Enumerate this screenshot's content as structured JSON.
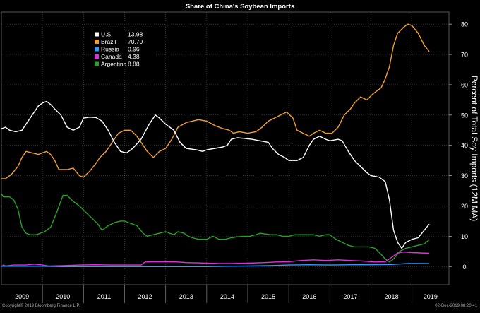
{
  "chart_data": {
    "type": "line",
    "title": "Share of China's Soybean Imports",
    "ylabel": "Percent of Total Soy Imports (12M MA)",
    "xlabel": "",
    "ylim": [
      -6,
      84
    ],
    "xlim": [
      2009.0,
      2019.9
    ],
    "y_ticks": [
      0,
      10,
      20,
      30,
      40,
      50,
      60,
      70,
      80
    ],
    "x_ticks": [
      "2009",
      "2010",
      "2011",
      "2012",
      "2013",
      "2014",
      "2015",
      "2016",
      "2017",
      "2018",
      "2019"
    ],
    "grid": true,
    "legend_position": "top-left",
    "footer_left": "Copyright© 2019 Bloomberg Finance L.P.",
    "footer_right": "02-Dec-2019 08:20:41",
    "series": [
      {
        "name": "U.S.",
        "last_value": "13.98",
        "color": "#ffffff",
        "points": [
          [
            2009.0,
            45.5
          ],
          [
            2009.1,
            46
          ],
          [
            2009.2,
            45
          ],
          [
            2009.35,
            44.5
          ],
          [
            2009.5,
            45
          ],
          [
            2009.6,
            47
          ],
          [
            2009.75,
            50
          ],
          [
            2009.9,
            53
          ],
          [
            2010.0,
            54
          ],
          [
            2010.1,
            54.5
          ],
          [
            2010.2,
            53.5
          ],
          [
            2010.3,
            52
          ],
          [
            2010.45,
            50
          ],
          [
            2010.6,
            46
          ],
          [
            2010.75,
            45
          ],
          [
            2010.9,
            46
          ],
          [
            2011.0,
            49
          ],
          [
            2011.15,
            49.3
          ],
          [
            2011.3,
            49.2
          ],
          [
            2011.45,
            48
          ],
          [
            2011.6,
            45
          ],
          [
            2011.75,
            41
          ],
          [
            2011.9,
            38
          ],
          [
            2012.05,
            37.5
          ],
          [
            2012.2,
            39
          ],
          [
            2012.4,
            42
          ],
          [
            2012.6,
            47
          ],
          [
            2012.75,
            50
          ],
          [
            2012.85,
            49
          ],
          [
            2013.0,
            47
          ],
          [
            2013.2,
            45
          ],
          [
            2013.35,
            41
          ],
          [
            2013.5,
            39
          ],
          [
            2013.75,
            38.5
          ],
          [
            2013.9,
            38
          ],
          [
            2014.0,
            38.5
          ],
          [
            2014.2,
            39
          ],
          [
            2014.4,
            39.5
          ],
          [
            2014.5,
            40
          ],
          [
            2014.6,
            42
          ],
          [
            2014.75,
            42.5
          ],
          [
            2014.9,
            42.3
          ],
          [
            2015.1,
            42
          ],
          [
            2015.3,
            41.5
          ],
          [
            2015.5,
            41
          ],
          [
            2015.6,
            39
          ],
          [
            2015.75,
            37
          ],
          [
            2015.9,
            36
          ],
          [
            2016.0,
            35
          ],
          [
            2016.2,
            35
          ],
          [
            2016.35,
            36
          ],
          [
            2016.5,
            40
          ],
          [
            2016.6,
            42
          ],
          [
            2016.75,
            43
          ],
          [
            2016.9,
            42
          ],
          [
            2017.0,
            41.5
          ],
          [
            2017.2,
            42
          ],
          [
            2017.3,
            41.5
          ],
          [
            2017.45,
            38
          ],
          [
            2017.6,
            35
          ],
          [
            2017.75,
            33
          ],
          [
            2017.9,
            31
          ],
          [
            2018.0,
            30
          ],
          [
            2018.2,
            29.5
          ],
          [
            2018.35,
            28
          ],
          [
            2018.45,
            22
          ],
          [
            2018.55,
            12
          ],
          [
            2018.65,
            8
          ],
          [
            2018.75,
            6
          ],
          [
            2018.85,
            8
          ],
          [
            2019.0,
            9
          ],
          [
            2019.15,
            9.5
          ],
          [
            2019.3,
            12
          ],
          [
            2019.42,
            14
          ]
        ]
      },
      {
        "name": "Brazil",
        "last_value": "70.79",
        "color": "#f0a030",
        "points": [
          [
            2009.0,
            29
          ],
          [
            2009.1,
            29
          ],
          [
            2009.25,
            30.5
          ],
          [
            2009.4,
            33
          ],
          [
            2009.5,
            36
          ],
          [
            2009.6,
            38
          ],
          [
            2009.75,
            37.5
          ],
          [
            2009.9,
            37
          ],
          [
            2010.0,
            37.5
          ],
          [
            2010.1,
            38
          ],
          [
            2010.2,
            37
          ],
          [
            2010.3,
            35
          ],
          [
            2010.4,
            32
          ],
          [
            2010.6,
            32
          ],
          [
            2010.75,
            32.5
          ],
          [
            2010.9,
            30
          ],
          [
            2011.0,
            29.5
          ],
          [
            2011.15,
            31.5
          ],
          [
            2011.3,
            34
          ],
          [
            2011.4,
            36
          ],
          [
            2011.55,
            38
          ],
          [
            2011.7,
            41
          ],
          [
            2011.85,
            44
          ],
          [
            2012.0,
            45
          ],
          [
            2012.15,
            45
          ],
          [
            2012.3,
            43
          ],
          [
            2012.4,
            41
          ],
          [
            2012.55,
            38
          ],
          [
            2012.7,
            36
          ],
          [
            2012.85,
            38
          ],
          [
            2013.0,
            39
          ],
          [
            2013.15,
            42
          ],
          [
            2013.3,
            46
          ],
          [
            2013.5,
            47.5
          ],
          [
            2013.65,
            48
          ],
          [
            2013.8,
            48.5
          ],
          [
            2014.0,
            48
          ],
          [
            2014.2,
            46.5
          ],
          [
            2014.4,
            45.5
          ],
          [
            2014.55,
            45
          ],
          [
            2014.65,
            44
          ],
          [
            2014.8,
            44.5
          ],
          [
            2015.0,
            44
          ],
          [
            2015.2,
            44.5
          ],
          [
            2015.35,
            46
          ],
          [
            2015.5,
            48
          ],
          [
            2015.65,
            49
          ],
          [
            2015.8,
            50
          ],
          [
            2015.95,
            51
          ],
          [
            2016.1,
            49
          ],
          [
            2016.2,
            45
          ],
          [
            2016.35,
            44
          ],
          [
            2016.5,
            43
          ],
          [
            2016.6,
            44
          ],
          [
            2016.75,
            45
          ],
          [
            2016.9,
            44
          ],
          [
            2017.05,
            44
          ],
          [
            2017.2,
            46
          ],
          [
            2017.35,
            50
          ],
          [
            2017.5,
            52
          ],
          [
            2017.6,
            54
          ],
          [
            2017.75,
            56
          ],
          [
            2017.9,
            55
          ],
          [
            2018.05,
            57
          ],
          [
            2018.25,
            59
          ],
          [
            2018.35,
            62
          ],
          [
            2018.45,
            66
          ],
          [
            2018.55,
            73
          ],
          [
            2018.65,
            77
          ],
          [
            2018.8,
            79
          ],
          [
            2018.9,
            80
          ],
          [
            2019.0,
            79.5
          ],
          [
            2019.15,
            77
          ],
          [
            2019.3,
            73
          ],
          [
            2019.42,
            71
          ]
        ]
      },
      {
        "name": "Russia",
        "last_value": "0.96",
        "color": "#3399ff",
        "points": [
          [
            2009.0,
            0.1
          ],
          [
            2009.5,
            0.1
          ],
          [
            2010.0,
            0.1
          ],
          [
            2010.5,
            0
          ],
          [
            2011.0,
            0
          ],
          [
            2011.5,
            0
          ],
          [
            2012.0,
            0
          ],
          [
            2012.5,
            0
          ],
          [
            2013.0,
            0
          ],
          [
            2013.5,
            0
          ],
          [
            2014.0,
            0
          ],
          [
            2014.5,
            0.1
          ],
          [
            2015.0,
            0.2
          ],
          [
            2015.5,
            0.3
          ],
          [
            2016.0,
            0.5
          ],
          [
            2016.5,
            0.6
          ],
          [
            2017.0,
            0.5
          ],
          [
            2017.5,
            0.6
          ],
          [
            2018.0,
            0.6
          ],
          [
            2018.5,
            0.7
          ],
          [
            2018.9,
            1.0
          ],
          [
            2019.2,
            1.0
          ],
          [
            2019.42,
            0.96
          ]
        ]
      },
      {
        "name": "Canada",
        "last_value": "4.38",
        "color": "#e030e0",
        "points": [
          [
            2009.0,
            0
          ],
          [
            2009.05,
            0.5
          ],
          [
            2009.1,
            0.2
          ],
          [
            2009.3,
            0.5
          ],
          [
            2009.6,
            0.5
          ],
          [
            2009.8,
            0.8
          ],
          [
            2010.0,
            0.5
          ],
          [
            2010.15,
            0.2
          ],
          [
            2010.5,
            0.3
          ],
          [
            2010.9,
            0.5
          ],
          [
            2011.3,
            0.6
          ],
          [
            2011.7,
            0.5
          ],
          [
            2012.1,
            0.5
          ],
          [
            2012.4,
            0.5
          ],
          [
            2012.5,
            1.5
          ],
          [
            2012.7,
            1.6
          ],
          [
            2013.0,
            1.6
          ],
          [
            2013.3,
            1.5
          ],
          [
            2013.5,
            1.3
          ],
          [
            2013.75,
            1.2
          ],
          [
            2014.0,
            1.1
          ],
          [
            2014.3,
            1.0
          ],
          [
            2014.6,
            1.0
          ],
          [
            2015.0,
            1.1
          ],
          [
            2015.4,
            1.3
          ],
          [
            2015.7,
            1.5
          ],
          [
            2016.0,
            1.6
          ],
          [
            2016.3,
            2.0
          ],
          [
            2016.6,
            2.2
          ],
          [
            2016.9,
            2.0
          ],
          [
            2017.2,
            2.2
          ],
          [
            2017.5,
            2.0
          ],
          [
            2017.8,
            1.8
          ],
          [
            2018.1,
            1.5
          ],
          [
            2018.35,
            1.6
          ],
          [
            2018.5,
            3.0
          ],
          [
            2018.65,
            4.5
          ],
          [
            2018.8,
            4.8
          ],
          [
            2019.0,
            4.6
          ],
          [
            2019.2,
            4.5
          ],
          [
            2019.42,
            4.38
          ]
        ]
      },
      {
        "name": "Argentina",
        "last_value": "8.88",
        "color": "#2aa02a",
        "points": [
          [
            2009.0,
            24
          ],
          [
            2009.05,
            23
          ],
          [
            2009.2,
            23
          ],
          [
            2009.3,
            22
          ],
          [
            2009.4,
            19
          ],
          [
            2009.5,
            13
          ],
          [
            2009.6,
            11
          ],
          [
            2009.7,
            10.5
          ],
          [
            2009.85,
            10.5
          ],
          [
            2009.95,
            11
          ],
          [
            2010.05,
            11.5
          ],
          [
            2010.2,
            13
          ],
          [
            2010.35,
            18
          ],
          [
            2010.5,
            23.5
          ],
          [
            2010.6,
            23.5
          ],
          [
            2010.75,
            21.5
          ],
          [
            2010.9,
            20
          ],
          [
            2011.05,
            18
          ],
          [
            2011.2,
            16
          ],
          [
            2011.35,
            14
          ],
          [
            2011.45,
            12
          ],
          [
            2011.6,
            13.5
          ],
          [
            2011.75,
            14.5
          ],
          [
            2011.9,
            15
          ],
          [
            2012.0,
            15
          ],
          [
            2012.1,
            14.5
          ],
          [
            2012.2,
            14
          ],
          [
            2012.3,
            13.5
          ],
          [
            2012.45,
            11
          ],
          [
            2012.55,
            10
          ],
          [
            2012.7,
            10.5
          ],
          [
            2012.85,
            11
          ],
          [
            2013.0,
            11.5
          ],
          [
            2013.1,
            11
          ],
          [
            2013.2,
            10.5
          ],
          [
            2013.3,
            11.5
          ],
          [
            2013.45,
            11
          ],
          [
            2013.55,
            10
          ],
          [
            2013.65,
            9.5
          ],
          [
            2013.8,
            9
          ],
          [
            2014.0,
            9
          ],
          [
            2014.15,
            10
          ],
          [
            2014.3,
            9
          ],
          [
            2014.45,
            9
          ],
          [
            2014.6,
            9.5
          ],
          [
            2014.75,
            9.8
          ],
          [
            2014.9,
            10
          ],
          [
            2015.05,
            10
          ],
          [
            2015.2,
            10.5
          ],
          [
            2015.3,
            11
          ],
          [
            2015.4,
            10.8
          ],
          [
            2015.55,
            10.5
          ],
          [
            2015.7,
            10.5
          ],
          [
            2015.85,
            10
          ],
          [
            2016.0,
            10
          ],
          [
            2016.15,
            10.5
          ],
          [
            2016.3,
            10.5
          ],
          [
            2016.45,
            10.5
          ],
          [
            2016.6,
            10.5
          ],
          [
            2016.75,
            10
          ],
          [
            2016.9,
            10.5
          ],
          [
            2017.0,
            10.5
          ],
          [
            2017.15,
            9
          ],
          [
            2017.3,
            8
          ],
          [
            2017.45,
            7
          ],
          [
            2017.6,
            6.5
          ],
          [
            2017.8,
            6.5
          ],
          [
            2017.95,
            6.5
          ],
          [
            2018.1,
            6
          ],
          [
            2018.25,
            4
          ],
          [
            2018.35,
            2.5
          ],
          [
            2018.45,
            1.5
          ],
          [
            2018.55,
            2.5
          ],
          [
            2018.7,
            5
          ],
          [
            2018.85,
            6
          ],
          [
            2019.0,
            6.5
          ],
          [
            2019.15,
            7
          ],
          [
            2019.3,
            7.5
          ],
          [
            2019.42,
            8.88
          ]
        ]
      }
    ]
  }
}
